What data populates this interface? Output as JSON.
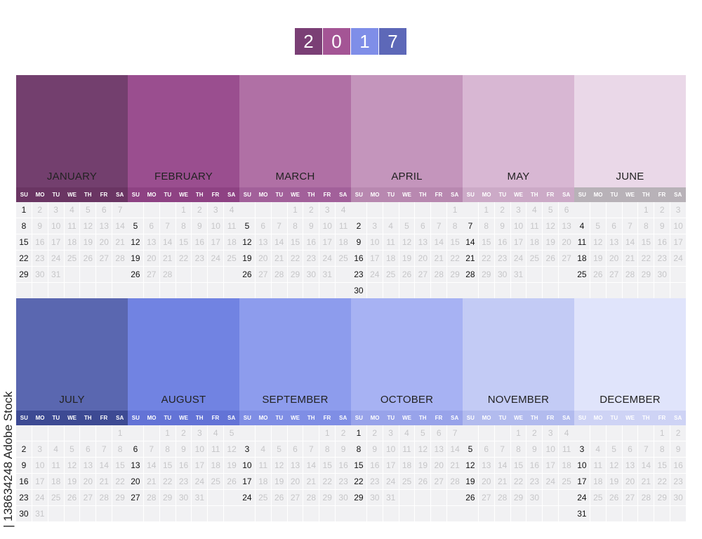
{
  "year_digits": [
    {
      "d": "2",
      "color": "#7a3f75"
    },
    {
      "d": "0",
      "color": "#a45595"
    },
    {
      "d": "1",
      "color": "#7f8ee8"
    },
    {
      "d": "7",
      "color": "#5d68b8"
    }
  ],
  "weekdays": [
    "SU",
    "MO",
    "TU",
    "WE",
    "TH",
    "FR",
    "SA"
  ],
  "months": [
    {
      "name": "JANUARY",
      "color": "#733f6e",
      "bar": "#6a3563",
      "start": 0,
      "days": 31
    },
    {
      "name": "FEBRUARY",
      "color": "#9a4e8f",
      "bar": "#8e4283",
      "start": 3,
      "days": 28
    },
    {
      "name": "MARCH",
      "color": "#b070a5",
      "bar": "#a2609a",
      "start": 3,
      "days": 31
    },
    {
      "name": "APRIL",
      "color": "#c495bc",
      "bar": "#b888b0",
      "start": 6,
      "days": 30
    },
    {
      "name": "MAY",
      "color": "#d8b7d3",
      "bar": "#ccaac7",
      "start": 1,
      "days": 31
    },
    {
      "name": "JUNE",
      "color": "#ead8e8",
      "bar": "#b8b2b8",
      "start": 4,
      "days": 30
    },
    {
      "name": "JULY",
      "color": "#5a67b0",
      "bar": "#3d4a93",
      "start": 6,
      "days": 31
    },
    {
      "name": "AUGUST",
      "color": "#7183e2",
      "bar": "#6373d6",
      "start": 2,
      "days": 31
    },
    {
      "name": "SEPTEMBER",
      "color": "#8d9ced",
      "bar": "#7f8ee5",
      "start": 5,
      "days": 30
    },
    {
      "name": "OCTOBER",
      "color": "#a7b2f3",
      "bar": "#98a3ea",
      "start": 0,
      "days": 31
    },
    {
      "name": "NOVEMBER",
      "color": "#c3cbf5",
      "bar": "#b2bbee",
      "start": 3,
      "days": 30
    },
    {
      "name": "DECEMBER",
      "color": "#e0e4fb",
      "bar": "#ced3f5",
      "start": 5,
      "days": 31
    }
  ],
  "side_text": "| 138634248 Adobe Stock"
}
